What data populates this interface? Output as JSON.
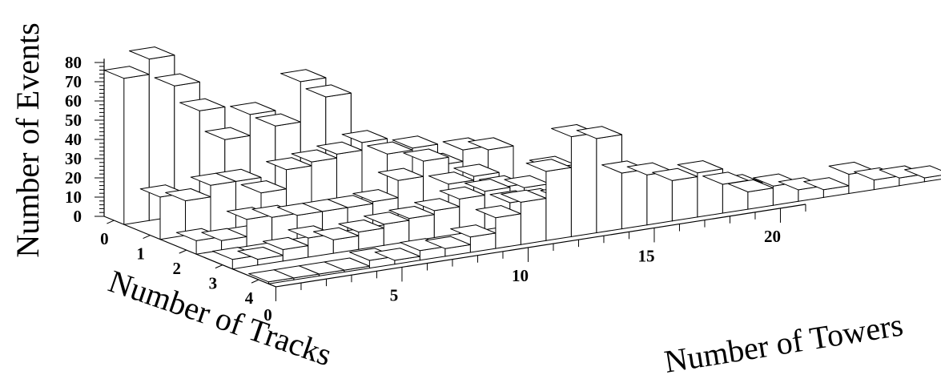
{
  "chart_data": {
    "type": "bar3d",
    "zlabel": "Number of Events",
    "xlabel": "Number of Towers",
    "ylabel": "Number of Tracks",
    "zlim": [
      0,
      80
    ],
    "z_ticks": [
      "0",
      "10",
      "20",
      "30",
      "40",
      "50",
      "60",
      "70",
      "80"
    ],
    "x_ticks": [
      "0",
      "5",
      "10",
      "15",
      "20"
    ],
    "y_ticks": [
      "0",
      "1",
      "2",
      "3",
      "4"
    ],
    "x_range": [
      0,
      21
    ],
    "tracks": [
      0,
      1,
      2,
      3,
      4
    ],
    "series": [
      {
        "name": "",
        "track": 0,
        "start_tower": 0,
        "values": [
          76,
          84,
          68,
          53,
          36,
          47,
          39,
          60,
          50
        ]
      },
      {
        "name": "",
        "track": 1,
        "start_tower": 0,
        "values": [
          22,
          18,
          24,
          24,
          16,
          26,
          28,
          30,
          34,
          26,
          27,
          16,
          22,
          20
        ]
      },
      {
        "name": "",
        "track": 2,
        "start_tower": 0,
        "values": [
          7,
          5,
          14,
          13,
          12,
          12,
          12,
          13,
          22,
          30,
          16,
          18,
          10,
          8,
          16,
          6,
          4,
          4,
          3
        ]
      },
      {
        "name": "",
        "track": 3,
        "start_tower": 0,
        "values": [
          5,
          3,
          6,
          10,
          7,
          9,
          11,
          12,
          14,
          18,
          20,
          12,
          11,
          10,
          9,
          9,
          8,
          8,
          6,
          4,
          2
        ]
      },
      {
        "name": "",
        "track": 4,
        "start_tower": 0,
        "values": [
          1,
          1,
          1,
          1,
          4,
          2,
          5,
          4,
          8,
          16,
          22,
          36,
          52,
          49,
          29,
          26,
          21,
          23,
          15,
          9,
          10,
          6,
          4,
          10,
          5,
          4,
          2
        ]
      }
    ]
  }
}
